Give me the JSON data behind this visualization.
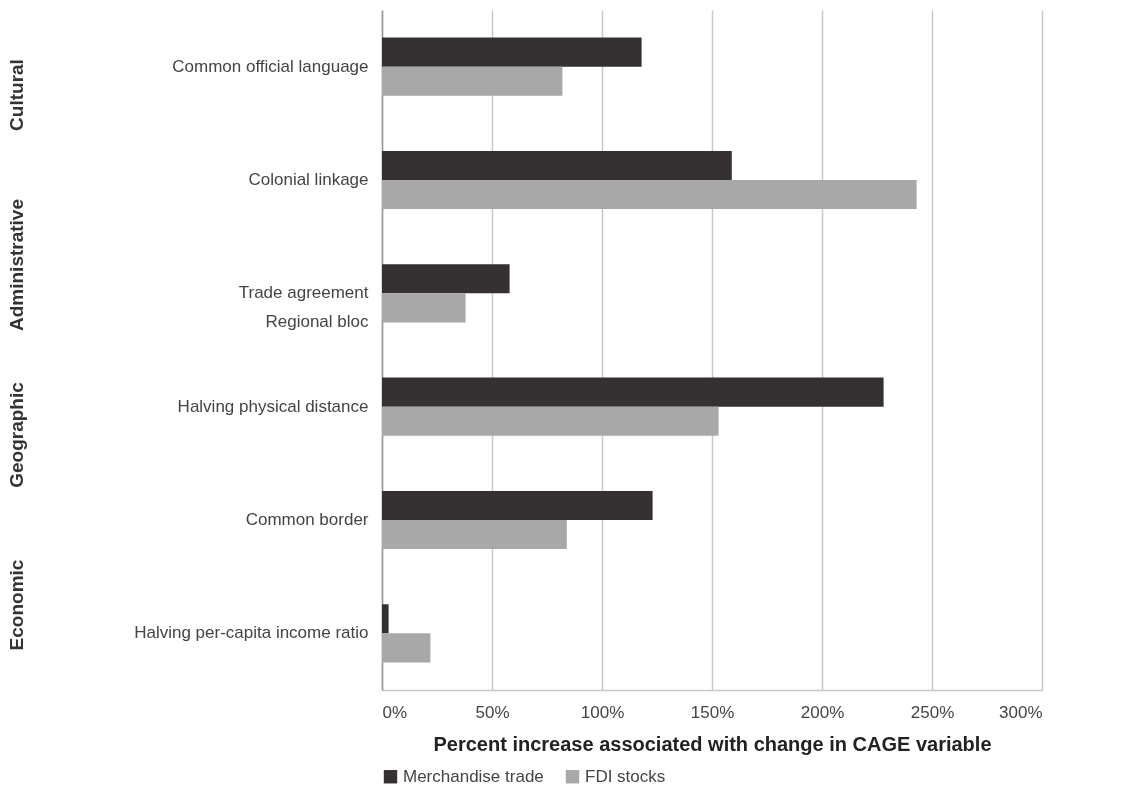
{
  "chart_data": {
    "type": "bar",
    "orientation": "horizontal",
    "xlabel": "Percent increase associated with change in CAGE variable",
    "categories": [
      "Common official language",
      "Colonial linkage",
      "Trade agreement\nRegional bloc",
      "Halving physical distance",
      "Common border",
      "Halving per-capita income ratio"
    ],
    "series": [
      {
        "name": "Merchandise trade",
        "color": "#353132",
        "values": [
          118,
          159,
          58,
          228,
          123,
          3
        ]
      },
      {
        "name": "FDI stocks",
        "color": "#a8a8a8",
        "values": [
          82,
          243,
          38,
          153,
          84,
          22
        ]
      }
    ],
    "xlim": [
      0,
      300
    ],
    "xticks": [
      {
        "value": 0,
        "label": "0%"
      },
      {
        "value": 50,
        "label": "50%"
      },
      {
        "value": 100,
        "label": "100%"
      },
      {
        "value": 150,
        "label": "150%"
      },
      {
        "value": 200,
        "label": "200%"
      },
      {
        "value": 250,
        "label": "250%"
      },
      {
        "value": 300,
        "label": "300%"
      }
    ],
    "grid": "x",
    "legend": "bottom",
    "annotations": [
      "Cultural",
      "Administrative",
      "Geographic",
      "Economic"
    ]
  }
}
